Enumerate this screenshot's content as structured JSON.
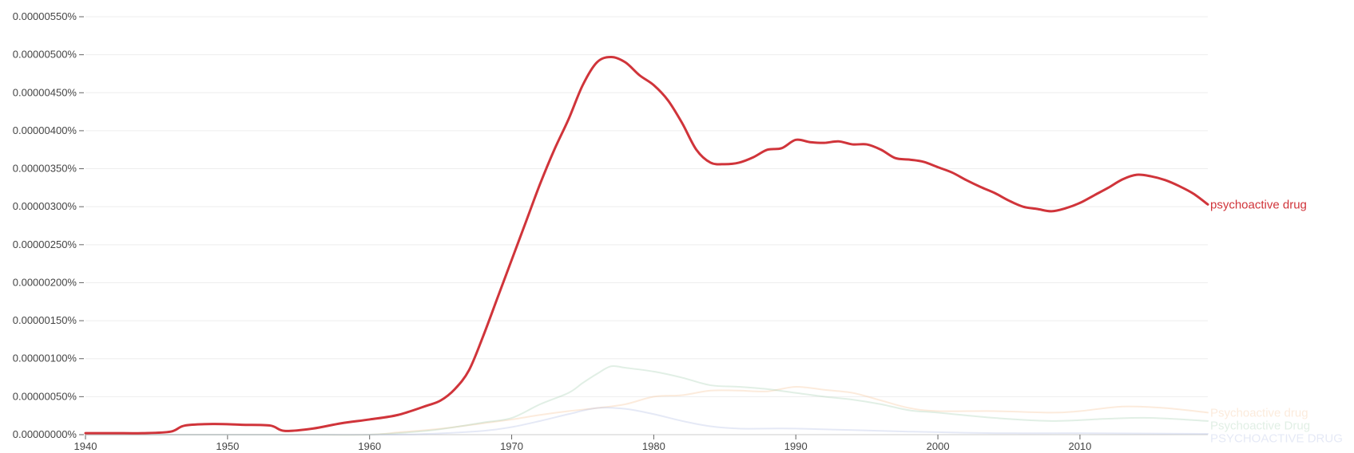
{
  "chart_data": {
    "type": "line",
    "title": "",
    "xlabel": "",
    "ylabel": "",
    "xlim": [
      1940,
      2019
    ],
    "ylim": [
      0,
      5.5e-06
    ],
    "grid": true,
    "legend": "right-end labels",
    "x_ticks": [
      {
        "value": 1940,
        "label": "1940"
      },
      {
        "value": 1950,
        "label": "1950"
      },
      {
        "value": 1960,
        "label": "1960"
      },
      {
        "value": 1970,
        "label": "1970"
      },
      {
        "value": 1980,
        "label": "1980"
      },
      {
        "value": 1990,
        "label": "1990"
      },
      {
        "value": 2000,
        "label": "2000"
      },
      {
        "value": 2010,
        "label": "2010"
      }
    ],
    "y_ticks": [
      {
        "value": 0.0,
        "label": "0.00000000%"
      },
      {
        "value": 5e-07,
        "label": "0.00000050%"
      },
      {
        "value": 1e-06,
        "label": "0.00000100%"
      },
      {
        "value": 1.5e-06,
        "label": "0.00000150%"
      },
      {
        "value": 2e-06,
        "label": "0.00000200%"
      },
      {
        "value": 2.5e-06,
        "label": "0.00000250%"
      },
      {
        "value": 3e-06,
        "label": "0.00000300%"
      },
      {
        "value": 3.5e-06,
        "label": "0.00000350%"
      },
      {
        "value": 4e-06,
        "label": "0.00000400%"
      },
      {
        "value": 4.5e-06,
        "label": "0.00000450%"
      },
      {
        "value": 5e-06,
        "label": "0.00000500%"
      },
      {
        "value": 5.5e-06,
        "label": "0.00000550%"
      }
    ],
    "series": [
      {
        "name": "Psychoactive drug",
        "color": "#f6bd8a",
        "opacity": 0.3,
        "width": 2,
        "x": [
          1940,
          1945,
          1950,
          1955,
          1960,
          1962,
          1964,
          1966,
          1968,
          1970,
          1972,
          1974,
          1976,
          1978,
          1980,
          1982,
          1984,
          1986,
          1988,
          1990,
          1992,
          1994,
          1996,
          1998,
          2000,
          2004,
          2008,
          2010,
          2013,
          2016,
          2019
        ],
        "y": [
          0,
          0,
          0,
          0,
          0,
          3e-08,
          6e-08,
          1e-07,
          1.5e-07,
          2e-07,
          2.6e-07,
          3.1e-07,
          3.5e-07,
          4e-07,
          5e-07,
          5.2e-07,
          5.8e-07,
          5.8e-07,
          5.7e-07,
          6.3e-07,
          5.9e-07,
          5.5e-07,
          4.5e-07,
          3.5e-07,
          3.1e-07,
          3.1e-07,
          2.9e-07,
          3.1e-07,
          3.7e-07,
          3.5e-07,
          2.9e-07
        ]
      },
      {
        "name": "Psychoactive Drug",
        "color": "#a9d0b4",
        "opacity": 0.35,
        "width": 2,
        "x": [
          1940,
          1950,
          1955,
          1960,
          1964,
          1966,
          1968,
          1970,
          1972,
          1974,
          1975,
          1976,
          1977,
          1978,
          1980,
          1982,
          1984,
          1986,
          1988,
          1990,
          1992,
          1994,
          1996,
          1998,
          2000,
          2004,
          2008,
          2012,
          2015,
          2019
        ],
        "y": [
          0,
          0,
          0,
          0,
          5e-08,
          1e-07,
          1.6e-07,
          2.2e-07,
          4e-07,
          5.5e-07,
          6.8e-07,
          8e-07,
          9e-07,
          8.8e-07,
          8.3e-07,
          7.5e-07,
          6.5e-07,
          6.3e-07,
          6e-07,
          5.5e-07,
          5e-07,
          4.6e-07,
          4e-07,
          3.2e-07,
          2.9e-07,
          2.2e-07,
          1.8e-07,
          2.1e-07,
          2.2e-07,
          1.8e-07
        ]
      },
      {
        "name": "PSYCHOACTIVE DRUG",
        "color": "#a8b7e0",
        "opacity": 0.3,
        "width": 2,
        "x": [
          1940,
          1960,
          1964,
          1968,
          1970,
          1972,
          1974,
          1976,
          1978,
          1980,
          1982,
          1984,
          1986,
          1988,
          1990,
          1994,
          1998,
          2004,
          2010,
          2019
        ],
        "y": [
          0,
          0,
          1e-08,
          5e-08,
          1e-07,
          1.8e-07,
          2.7e-07,
          3.5e-07,
          3.4e-07,
          2.7e-07,
          1.8e-07,
          1.1e-07,
          8e-08,
          8e-08,
          8e-08,
          6e-08,
          4e-08,
          2e-08,
          2e-08,
          1e-08
        ]
      },
      {
        "name": "psychoactive drug",
        "color": "#d0343a",
        "opacity": 1,
        "width": 3,
        "x": [
          1940,
          1942,
          1944,
          1946,
          1947,
          1949,
          1951,
          1953,
          1954,
          1956,
          1958,
          1960,
          1962,
          1964,
          1965,
          1966,
          1967,
          1968,
          1969,
          1970,
          1971,
          1972,
          1973,
          1974,
          1975,
          1976,
          1977,
          1978,
          1979,
          1980,
          1981,
          1982,
          1983,
          1984,
          1985,
          1986,
          1987,
          1988,
          1989,
          1990,
          1991,
          1992,
          1993,
          1994,
          1995,
          1996,
          1997,
          1998,
          1999,
          2000,
          2001,
          2002,
          2003,
          2004,
          2005,
          2006,
          2007,
          2008,
          2009,
          2010,
          2011,
          2012,
          2013,
          2014,
          2015,
          2016,
          2017,
          2018,
          2019
        ],
        "y": [
          2e-08,
          2e-08,
          2e-08,
          4e-08,
          1.2e-07,
          1.4e-07,
          1.3e-07,
          1.2e-07,
          5e-08,
          8e-08,
          1.5e-07,
          2e-07,
          2.6e-07,
          3.8e-07,
          4.5e-07,
          6e-07,
          8.5e-07,
          1.3e-06,
          1.8e-06,
          2.3e-06,
          2.8e-06,
          3.3e-06,
          3.75e-06,
          4.15e-06,
          4.6e-06,
          4.9e-06,
          4.97e-06,
          4.9e-06,
          4.73e-06,
          4.6e-06,
          4.4e-06,
          4.1e-06,
          3.75e-06,
          3.58e-06,
          3.56e-06,
          3.58e-06,
          3.65e-06,
          3.75e-06,
          3.77e-06,
          3.88e-06,
          3.85e-06,
          3.84e-06,
          3.86e-06,
          3.82e-06,
          3.82e-06,
          3.75e-06,
          3.64e-06,
          3.62e-06,
          3.59e-06,
          3.52e-06,
          3.45e-06,
          3.35e-06,
          3.26e-06,
          3.18e-06,
          3.08e-06,
          3e-06,
          2.97e-06,
          2.94e-06,
          2.98e-06,
          3.05e-06,
          3.15e-06,
          3.25e-06,
          3.36e-06,
          3.42e-06,
          3.4e-06,
          3.35e-06,
          3.27e-06,
          3.17e-06,
          3.03e-06
        ]
      }
    ]
  }
}
